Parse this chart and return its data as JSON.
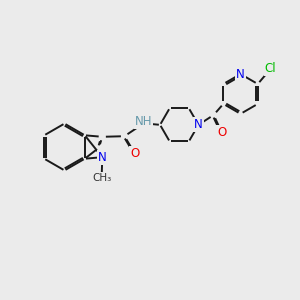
{
  "background_color": "#ebebeb",
  "bond_color": "#1a1a1a",
  "bond_width": 1.4,
  "dbo": 0.055,
  "atom_colors": {
    "N": "#0000ee",
    "O": "#ee0000",
    "Cl": "#00bb00",
    "H": "#6699aa"
  },
  "font_size": 8.5
}
